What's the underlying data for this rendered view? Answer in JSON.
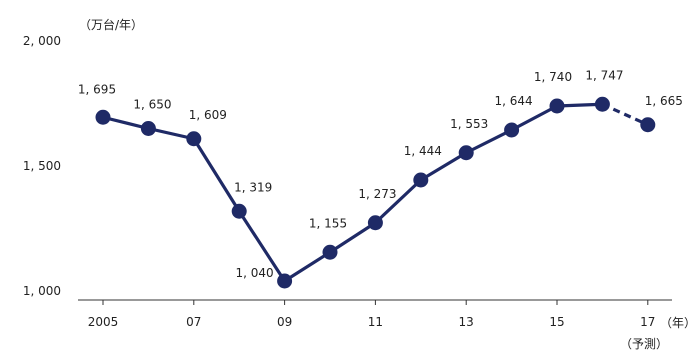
{
  "chart_data": {
    "type": "line",
    "y_unit": "（万台/年）",
    "x_unit": "（年）",
    "x_note": "（予測）",
    "x": [
      2005,
      2006,
      2007,
      2008,
      2009,
      2010,
      2011,
      2012,
      2013,
      2014,
      2015,
      2016,
      2017
    ],
    "x_ticks": [
      {
        "x": 2005,
        "label": "2005"
      },
      {
        "x": 2007,
        "label": "07"
      },
      {
        "x": 2009,
        "label": "09"
      },
      {
        "x": 2011,
        "label": "11"
      },
      {
        "x": 2013,
        "label": "13"
      },
      {
        "x": 2015,
        "label": "15"
      },
      {
        "x": 2017,
        "label": "17"
      }
    ],
    "y_ticks": [
      {
        "y": 2000,
        "label": "2, 000"
      },
      {
        "y": 1500,
        "label": "1, 500"
      },
      {
        "y": 1000,
        "label": "1, 000"
      }
    ],
    "ylim": [
      1000,
      2000
    ],
    "forecast_from_index": 11,
    "color": "#1f2a66",
    "grid": false,
    "series": [
      {
        "values": [
          1695,
          1650,
          1609,
          1319,
          1040,
          1155,
          1273,
          1444,
          1553,
          1644,
          1740,
          1747,
          1665
        ],
        "labels": [
          "1, 695",
          "1, 650",
          "1, 609",
          "1, 319",
          "1, 040",
          "1, 155",
          "1, 273",
          "1, 444",
          "1, 553",
          "1, 644",
          "1, 740",
          "1, 747",
          "1, 665"
        ]
      }
    ]
  }
}
